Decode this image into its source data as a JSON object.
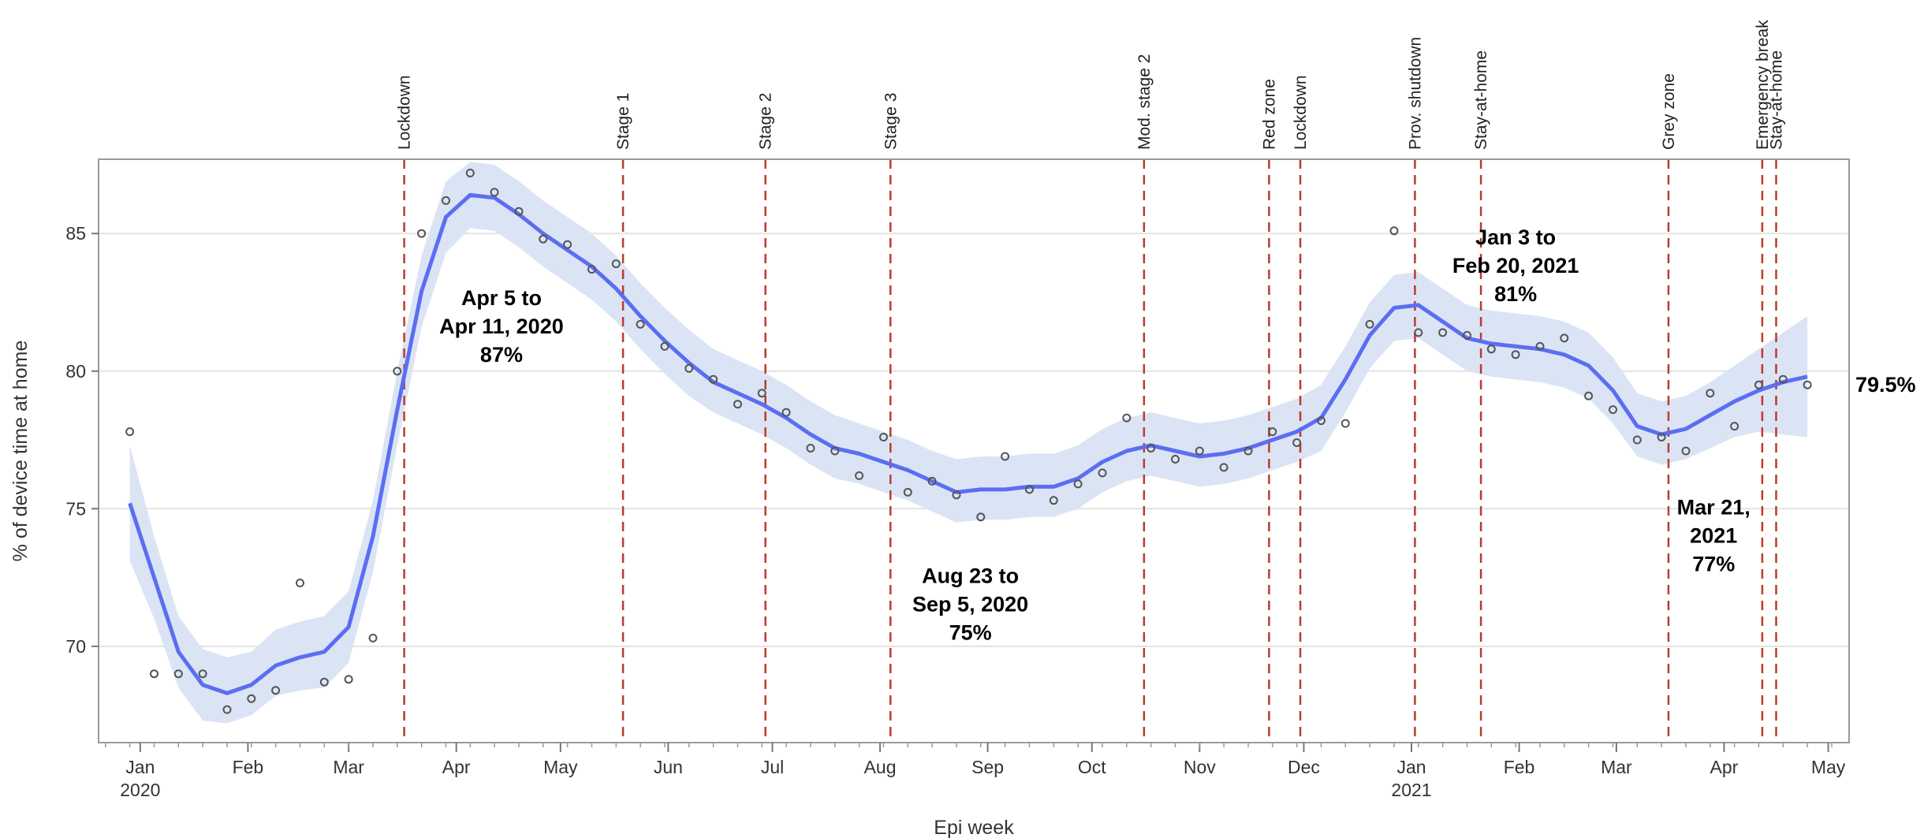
{
  "chart_data": {
    "type": "line",
    "xlabel": "Epi week",
    "ylabel": "% of device time at home",
    "ylim": [
      66.5,
      87.7
    ],
    "yticks": [
      70,
      75,
      80,
      85
    ],
    "x_range": [
      "2019-12-20",
      "2021-05-07"
    ],
    "grid": "horizontal",
    "month_ticks": [
      {
        "label": "Jan",
        "date": "2020-01-01",
        "year": "2020"
      },
      {
        "label": "Feb",
        "date": "2020-02-01"
      },
      {
        "label": "Mar",
        "date": "2020-03-01"
      },
      {
        "label": "Apr",
        "date": "2020-04-01"
      },
      {
        "label": "May",
        "date": "2020-05-01"
      },
      {
        "label": "Jun",
        "date": "2020-06-01"
      },
      {
        "label": "Jul",
        "date": "2020-07-01"
      },
      {
        "label": "Aug",
        "date": "2020-08-01"
      },
      {
        "label": "Sep",
        "date": "2020-09-01"
      },
      {
        "label": "Oct",
        "date": "2020-10-01"
      },
      {
        "label": "Nov",
        "date": "2020-11-01"
      },
      {
        "label": "Dec",
        "date": "2020-12-01"
      },
      {
        "label": "Jan",
        "date": "2021-01-01",
        "year": "2021"
      },
      {
        "label": "Feb",
        "date": "2021-02-01"
      },
      {
        "label": "Mar",
        "date": "2021-03-01"
      },
      {
        "label": "Apr",
        "date": "2021-04-01"
      },
      {
        "label": "May",
        "date": "2021-05-01"
      }
    ],
    "points": [
      {
        "date": "2019-12-29",
        "y": 77.8
      },
      {
        "date": "2020-01-05",
        "y": 69.0
      },
      {
        "date": "2020-01-12",
        "y": 69.0
      },
      {
        "date": "2020-01-19",
        "y": 69.0
      },
      {
        "date": "2020-01-26",
        "y": 67.7
      },
      {
        "date": "2020-02-02",
        "y": 68.1
      },
      {
        "date": "2020-02-09",
        "y": 68.4
      },
      {
        "date": "2020-02-16",
        "y": 72.3
      },
      {
        "date": "2020-02-23",
        "y": 68.7
      },
      {
        "date": "2020-03-01",
        "y": 68.8
      },
      {
        "date": "2020-03-08",
        "y": 70.3
      },
      {
        "date": "2020-03-15",
        "y": 80.0
      },
      {
        "date": "2020-03-22",
        "y": 85.0
      },
      {
        "date": "2020-03-29",
        "y": 86.2
      },
      {
        "date": "2020-04-05",
        "y": 87.2
      },
      {
        "date": "2020-04-12",
        "y": 86.5
      },
      {
        "date": "2020-04-19",
        "y": 85.8
      },
      {
        "date": "2020-04-26",
        "y": 84.8
      },
      {
        "date": "2020-05-03",
        "y": 84.6
      },
      {
        "date": "2020-05-10",
        "y": 83.7
      },
      {
        "date": "2020-05-17",
        "y": 83.9
      },
      {
        "date": "2020-05-24",
        "y": 81.7
      },
      {
        "date": "2020-05-31",
        "y": 80.9
      },
      {
        "date": "2020-06-07",
        "y": 80.1
      },
      {
        "date": "2020-06-14",
        "y": 79.7
      },
      {
        "date": "2020-06-21",
        "y": 78.8
      },
      {
        "date": "2020-06-28",
        "y": 79.2
      },
      {
        "date": "2020-07-05",
        "y": 78.5
      },
      {
        "date": "2020-07-12",
        "y": 77.2
      },
      {
        "date": "2020-07-19",
        "y": 77.1
      },
      {
        "date": "2020-07-26",
        "y": 76.2
      },
      {
        "date": "2020-08-02",
        "y": 77.6
      },
      {
        "date": "2020-08-09",
        "y": 75.6
      },
      {
        "date": "2020-08-16",
        "y": 76.0
      },
      {
        "date": "2020-08-23",
        "y": 75.5
      },
      {
        "date": "2020-08-30",
        "y": 74.7
      },
      {
        "date": "2020-09-06",
        "y": 76.9
      },
      {
        "date": "2020-09-13",
        "y": 75.7
      },
      {
        "date": "2020-09-20",
        "y": 75.3
      },
      {
        "date": "2020-09-27",
        "y": 75.9
      },
      {
        "date": "2020-10-04",
        "y": 76.3
      },
      {
        "date": "2020-10-11",
        "y": 78.3
      },
      {
        "date": "2020-10-18",
        "y": 77.2
      },
      {
        "date": "2020-10-25",
        "y": 76.8
      },
      {
        "date": "2020-11-01",
        "y": 77.1
      },
      {
        "date": "2020-11-08",
        "y": 76.5
      },
      {
        "date": "2020-11-15",
        "y": 77.1
      },
      {
        "date": "2020-11-22",
        "y": 77.8
      },
      {
        "date": "2020-11-29",
        "y": 77.4
      },
      {
        "date": "2020-12-06",
        "y": 78.2
      },
      {
        "date": "2020-12-13",
        "y": 78.1
      },
      {
        "date": "2020-12-20",
        "y": 81.7
      },
      {
        "date": "2020-12-27",
        "y": 85.1
      },
      {
        "date": "2021-01-03",
        "y": 81.4
      },
      {
        "date": "2021-01-10",
        "y": 81.4
      },
      {
        "date": "2021-01-17",
        "y": 81.3
      },
      {
        "date": "2021-01-24",
        "y": 80.8
      },
      {
        "date": "2021-01-31",
        "y": 80.6
      },
      {
        "date": "2021-02-07",
        "y": 80.9
      },
      {
        "date": "2021-02-14",
        "y": 81.2
      },
      {
        "date": "2021-02-21",
        "y": 79.1
      },
      {
        "date": "2021-02-28",
        "y": 78.6
      },
      {
        "date": "2021-03-07",
        "y": 77.5
      },
      {
        "date": "2021-03-14",
        "y": 77.6
      },
      {
        "date": "2021-03-21",
        "y": 77.1
      },
      {
        "date": "2021-03-28",
        "y": 79.2
      },
      {
        "date": "2021-04-04",
        "y": 78.0
      },
      {
        "date": "2021-04-11",
        "y": 79.5
      },
      {
        "date": "2021-04-18",
        "y": 79.7
      },
      {
        "date": "2021-04-25",
        "y": 79.5
      }
    ],
    "trend": [
      {
        "date": "2019-12-29",
        "y": 75.2,
        "lo": 73.1,
        "hi": 77.3
      },
      {
        "date": "2020-01-05",
        "y": 72.5,
        "lo": 71.0,
        "hi": 74.0
      },
      {
        "date": "2020-01-12",
        "y": 69.8,
        "lo": 68.5,
        "hi": 71.1
      },
      {
        "date": "2020-01-19",
        "y": 68.6,
        "lo": 67.3,
        "hi": 69.9
      },
      {
        "date": "2020-01-26",
        "y": 68.3,
        "lo": 67.2,
        "hi": 69.6
      },
      {
        "date": "2020-02-02",
        "y": 68.6,
        "lo": 67.5,
        "hi": 69.8
      },
      {
        "date": "2020-02-09",
        "y": 69.3,
        "lo": 68.2,
        "hi": 70.6
      },
      {
        "date": "2020-02-16",
        "y": 69.6,
        "lo": 68.4,
        "hi": 70.9
      },
      {
        "date": "2020-02-23",
        "y": 69.8,
        "lo": 68.5,
        "hi": 71.1
      },
      {
        "date": "2020-03-01",
        "y": 70.7,
        "lo": 69.4,
        "hi": 72.0
      },
      {
        "date": "2020-03-08",
        "y": 74.0,
        "lo": 72.7,
        "hi": 75.3
      },
      {
        "date": "2020-03-15",
        "y": 78.6,
        "lo": 77.3,
        "hi": 80.0
      },
      {
        "date": "2020-03-22",
        "y": 82.9,
        "lo": 81.6,
        "hi": 84.2
      },
      {
        "date": "2020-03-29",
        "y": 85.6,
        "lo": 84.3,
        "hi": 86.9
      },
      {
        "date": "2020-04-05",
        "y": 86.4,
        "lo": 85.2,
        "hi": 87.6
      },
      {
        "date": "2020-04-12",
        "y": 86.3,
        "lo": 85.1,
        "hi": 87.5
      },
      {
        "date": "2020-04-19",
        "y": 85.7,
        "lo": 84.5,
        "hi": 86.9
      },
      {
        "date": "2020-04-26",
        "y": 85.0,
        "lo": 83.8,
        "hi": 86.2
      },
      {
        "date": "2020-05-03",
        "y": 84.4,
        "lo": 83.2,
        "hi": 85.6
      },
      {
        "date": "2020-05-10",
        "y": 83.8,
        "lo": 82.6,
        "hi": 85.0
      },
      {
        "date": "2020-05-17",
        "y": 83.0,
        "lo": 81.8,
        "hi": 84.2
      },
      {
        "date": "2020-05-24",
        "y": 82.0,
        "lo": 80.8,
        "hi": 83.2
      },
      {
        "date": "2020-05-31",
        "y": 81.1,
        "lo": 79.9,
        "hi": 82.3
      },
      {
        "date": "2020-06-07",
        "y": 80.3,
        "lo": 79.1,
        "hi": 81.5
      },
      {
        "date": "2020-06-14",
        "y": 79.6,
        "lo": 78.5,
        "hi": 80.8
      },
      {
        "date": "2020-06-21",
        "y": 79.2,
        "lo": 78.1,
        "hi": 80.4
      },
      {
        "date": "2020-06-28",
        "y": 78.8,
        "lo": 77.7,
        "hi": 80.0
      },
      {
        "date": "2020-07-05",
        "y": 78.3,
        "lo": 77.2,
        "hi": 79.5
      },
      {
        "date": "2020-07-12",
        "y": 77.7,
        "lo": 76.6,
        "hi": 78.9
      },
      {
        "date": "2020-07-19",
        "y": 77.2,
        "lo": 76.1,
        "hi": 78.4
      },
      {
        "date": "2020-07-26",
        "y": 77.0,
        "lo": 75.9,
        "hi": 78.1
      },
      {
        "date": "2020-08-02",
        "y": 76.7,
        "lo": 75.6,
        "hi": 77.8
      },
      {
        "date": "2020-08-09",
        "y": 76.4,
        "lo": 75.3,
        "hi": 77.5
      },
      {
        "date": "2020-08-16",
        "y": 76.0,
        "lo": 74.9,
        "hi": 77.1
      },
      {
        "date": "2020-08-23",
        "y": 75.6,
        "lo": 74.5,
        "hi": 76.8
      },
      {
        "date": "2020-08-30",
        "y": 75.7,
        "lo": 74.6,
        "hi": 76.9
      },
      {
        "date": "2020-09-06",
        "y": 75.7,
        "lo": 74.6,
        "hi": 76.9
      },
      {
        "date": "2020-09-13",
        "y": 75.8,
        "lo": 74.7,
        "hi": 77.0
      },
      {
        "date": "2020-09-20",
        "y": 75.8,
        "lo": 74.7,
        "hi": 77.0
      },
      {
        "date": "2020-09-27",
        "y": 76.1,
        "lo": 75.0,
        "hi": 77.3
      },
      {
        "date": "2020-10-04",
        "y": 76.7,
        "lo": 75.6,
        "hi": 77.9
      },
      {
        "date": "2020-10-11",
        "y": 77.1,
        "lo": 76.0,
        "hi": 78.3
      },
      {
        "date": "2020-10-18",
        "y": 77.3,
        "lo": 76.2,
        "hi": 78.5
      },
      {
        "date": "2020-10-25",
        "y": 77.1,
        "lo": 76.0,
        "hi": 78.3
      },
      {
        "date": "2020-11-01",
        "y": 76.9,
        "lo": 75.8,
        "hi": 78.1
      },
      {
        "date": "2020-11-08",
        "y": 77.0,
        "lo": 75.9,
        "hi": 78.2
      },
      {
        "date": "2020-11-15",
        "y": 77.2,
        "lo": 76.1,
        "hi": 78.4
      },
      {
        "date": "2020-11-22",
        "y": 77.5,
        "lo": 76.4,
        "hi": 78.7
      },
      {
        "date": "2020-11-29",
        "y": 77.8,
        "lo": 76.7,
        "hi": 79.0
      },
      {
        "date": "2020-12-06",
        "y": 78.3,
        "lo": 77.1,
        "hi": 79.5
      },
      {
        "date": "2020-12-13",
        "y": 79.7,
        "lo": 78.5,
        "hi": 80.9
      },
      {
        "date": "2020-12-20",
        "y": 81.3,
        "lo": 80.1,
        "hi": 82.5
      },
      {
        "date": "2020-12-27",
        "y": 82.3,
        "lo": 81.1,
        "hi": 83.5
      },
      {
        "date": "2021-01-03",
        "y": 82.4,
        "lo": 81.2,
        "hi": 83.6
      },
      {
        "date": "2021-01-10",
        "y": 81.8,
        "lo": 80.6,
        "hi": 83.0
      },
      {
        "date": "2021-01-17",
        "y": 81.2,
        "lo": 80.0,
        "hi": 82.4
      },
      {
        "date": "2021-01-24",
        "y": 81.0,
        "lo": 79.8,
        "hi": 82.2
      },
      {
        "date": "2021-01-31",
        "y": 80.9,
        "lo": 79.7,
        "hi": 82.1
      },
      {
        "date": "2021-02-07",
        "y": 80.8,
        "lo": 79.6,
        "hi": 82.0
      },
      {
        "date": "2021-02-14",
        "y": 80.6,
        "lo": 79.4,
        "hi": 81.8
      },
      {
        "date": "2021-02-21",
        "y": 80.2,
        "lo": 79.0,
        "hi": 81.4
      },
      {
        "date": "2021-02-28",
        "y": 79.3,
        "lo": 78.1,
        "hi": 80.5
      },
      {
        "date": "2021-03-07",
        "y": 78.0,
        "lo": 76.9,
        "hi": 79.2
      },
      {
        "date": "2021-03-14",
        "y": 77.7,
        "lo": 76.6,
        "hi": 78.9
      },
      {
        "date": "2021-03-21",
        "y": 77.9,
        "lo": 76.8,
        "hi": 79.1
      },
      {
        "date": "2021-03-28",
        "y": 78.4,
        "lo": 77.2,
        "hi": 79.6
      },
      {
        "date": "2021-04-04",
        "y": 78.9,
        "lo": 77.6,
        "hi": 80.2
      },
      {
        "date": "2021-04-11",
        "y": 79.3,
        "lo": 77.8,
        "hi": 80.8
      },
      {
        "date": "2021-04-18",
        "y": 79.6,
        "lo": 77.7,
        "hi": 81.4
      },
      {
        "date": "2021-04-25",
        "y": 79.8,
        "lo": 77.6,
        "hi": 82.0
      }
    ],
    "events": [
      {
        "label": "Lockdown",
        "date": "2020-03-17"
      },
      {
        "label": "Stage 1",
        "date": "2020-05-19"
      },
      {
        "label": "Stage 2",
        "date": "2020-06-29"
      },
      {
        "label": "Stage 3",
        "date": "2020-08-04"
      },
      {
        "label": "Mod. stage 2",
        "date": "2020-10-16"
      },
      {
        "label": "Red zone",
        "date": "2020-11-21"
      },
      {
        "label": "Lockdown",
        "date": "2020-11-30"
      },
      {
        "label": "Prov. shutdown",
        "date": "2021-01-02"
      },
      {
        "label": "Stay-at-home",
        "date": "2021-01-21"
      },
      {
        "label": "Grey zone",
        "date": "2021-03-16"
      },
      {
        "label": "Emergency break",
        "date": "2021-04-12"
      },
      {
        "label": "Stay-at-home",
        "date": "2021-04-16"
      }
    ],
    "annotations": [
      {
        "lines": [
          "Apr 5 to",
          "Apr 11, 2020",
          "87%"
        ],
        "date": "2020-04-14",
        "y": 82.4
      },
      {
        "lines": [
          "Aug 23 to",
          "Sep 5, 2020",
          "75%"
        ],
        "date": "2020-08-27",
        "y": 72.3
      },
      {
        "lines": [
          "Jan 3 to",
          "Feb 20, 2021",
          "81%"
        ],
        "date": "2021-01-31",
        "y": 84.6
      },
      {
        "lines": [
          "Mar 21,",
          "2021",
          "77%"
        ],
        "date": "2021-03-29",
        "y": 74.8
      }
    ],
    "end_label": "79.5%",
    "colors": {
      "trend": "#5b6ef2",
      "band": "#dbe4f4",
      "points": "#555555",
      "events": "#c0392b",
      "grid": "#e3e3e3"
    }
  }
}
